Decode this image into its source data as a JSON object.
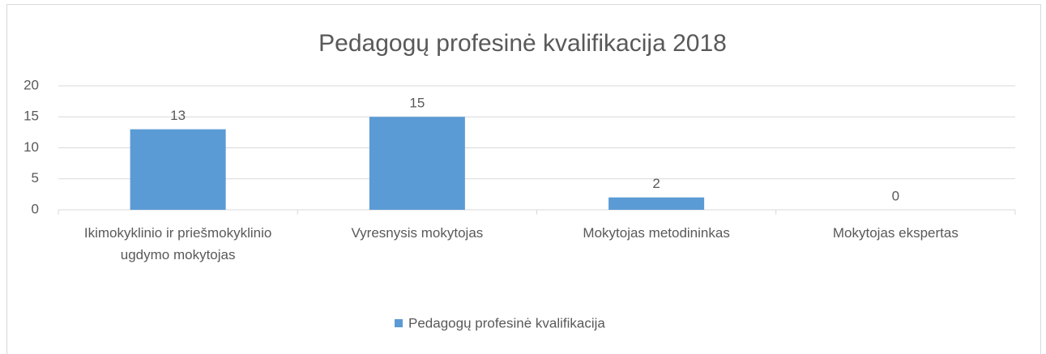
{
  "chart_data": {
    "type": "bar",
    "title": "Pedagogų profesinė kvalifikacija 2018",
    "categories": [
      "Ikimokyklinio ir priešmokyklinio ugdymo mokytojas",
      "Vyresnysis mokytojas",
      "Mokytojas metodininkas",
      "Mokytojas ekspertas"
    ],
    "series": [
      {
        "name": "Pedagogų profesinė kvalifikacija",
        "color": "#5b9bd5",
        "values": [
          13,
          15,
          2,
          0
        ]
      }
    ],
    "ylim": [
      0,
      20
    ],
    "yticks": [
      0,
      5,
      10,
      15,
      20
    ],
    "grid": true,
    "legend": "bottom"
  }
}
